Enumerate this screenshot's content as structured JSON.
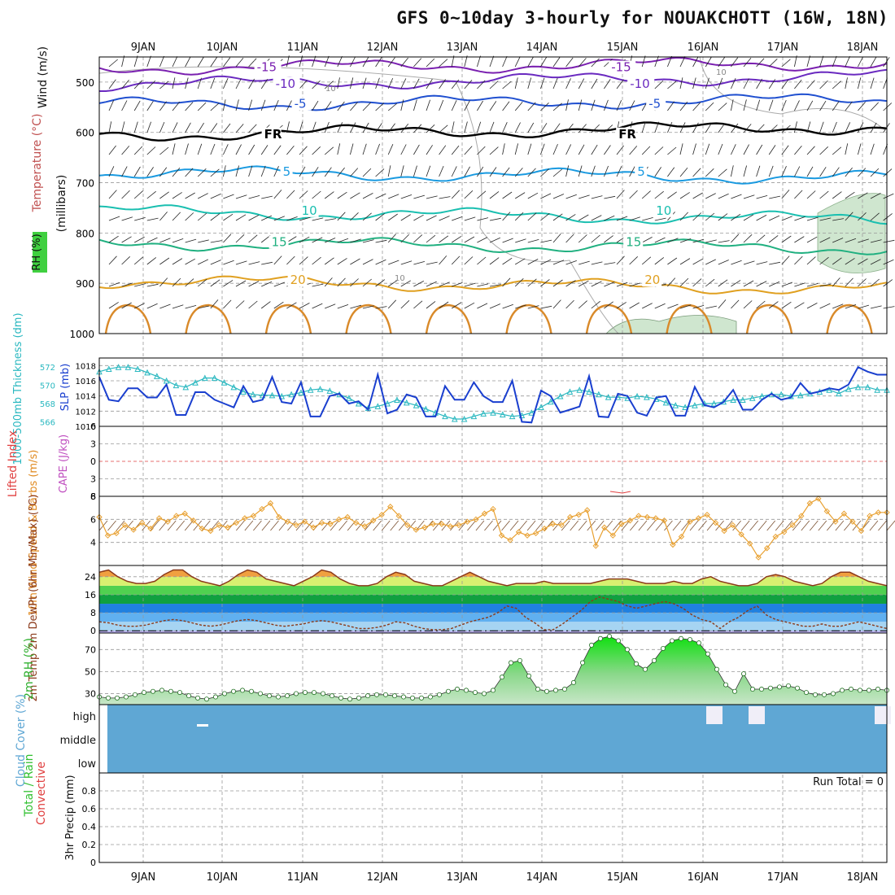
{
  "title": "GFS 0~10day 3-hourly for NOUAKCHOTT (16W, 18N)",
  "colors": {
    "grid": "#999999",
    "frame": "#000000",
    "slp": "#1a3fcf",
    "thickness": "#2ab8c0",
    "wind": "#e8a030",
    "temp": "#8b3a1a",
    "dew": "#8b3a1a",
    "rh": "#1fd21f",
    "cloud": "#5fa7d4",
    "li": "#e04040",
    "cape": "#c050c0"
  },
  "day_labels": [
    "9JAN",
    "10JAN",
    "11JAN",
    "12JAN",
    "13JAN",
    "14JAN",
    "15JAN",
    "16JAN",
    "17JAN",
    "18JAN"
  ],
  "chart_data": [
    {
      "type": "contour",
      "name": "upper-air",
      "ylabel": "(millibars)",
      "side_labels": [
        "Wind (m/s)",
        "Temperature (°C)",
        "RH (%)"
      ],
      "yticks": [
        500,
        600,
        700,
        800,
        900,
        1000
      ],
      "ylim": [
        450,
        1000
      ],
      "isotherms": [
        {
          "label": "-15",
          "level": 472,
          "color": "#7a20b0"
        },
        {
          "label": "-10",
          "level": 505,
          "color": "#6a2ac0"
        },
        {
          "label": "-5",
          "level": 545,
          "color": "#2050d0"
        },
        {
          "label": "FR",
          "level": 605,
          "color": "#000000"
        },
        {
          "label": "5",
          "level": 680,
          "color": "#1a9ae0"
        },
        {
          "label": "10",
          "level": 757,
          "color": "#1abfb0"
        },
        {
          "label": "15",
          "level": 820,
          "color": "#20b080"
        },
        {
          "label": "20",
          "level": 895,
          "color": "#e0a020"
        }
      ],
      "rh_contour_label": "10"
    },
    {
      "type": "line",
      "name": "slp-thickness",
      "ylabel_left": "1000-500mb Thickness (dm)",
      "ylabel_right": "SLP (mb)",
      "yticks_left": [
        566,
        568,
        570,
        572
      ],
      "yticks_right": [
        1010,
        1012,
        1014,
        1016,
        1018
      ],
      "ylim_right": [
        1010,
        1019
      ],
      "series": [
        {
          "name": "SLP (mb)",
          "values": [
            1016.5,
            1013.5,
            1013.3,
            1015,
            1015,
            1013.8,
            1013.8,
            1015.5,
            1011.5,
            1011.5,
            1014.5,
            1014.5,
            1013.5,
            1013,
            1012.5,
            1015.3,
            1013.2,
            1013.5,
            1016.5,
            1013.2,
            1013,
            1015.8,
            1011.3,
            1011.3,
            1014,
            1014.3,
            1013,
            1013.3,
            1012.2,
            1016.8,
            1011.7,
            1012.2,
            1014.2,
            1013.8,
            1011.3,
            1011.3,
            1015.3,
            1013.5,
            1013.5,
            1015.8,
            1014,
            1013.2,
            1013.2,
            1016,
            1010.6,
            1010.5,
            1014.7,
            1014,
            1011.8,
            1012.2,
            1012.6,
            1016.6,
            1011.3,
            1011.2,
            1014.3,
            1014,
            1011.8,
            1011.4,
            1013.8,
            1014,
            1011.4,
            1011.4,
            1015.2,
            1012.8,
            1012.5,
            1013.2,
            1014.8,
            1012.2,
            1012.2,
            1013.5,
            1014.3,
            1013.5,
            1013.8,
            1015.7,
            1014.3,
            1014.6,
            1015,
            1014.8,
            1015.5,
            1017.8,
            1017.2,
            1016.8,
            1016.8
          ]
        },
        {
          "name": "Thickness (dm)",
          "values": [
            571.5,
            571.8,
            572,
            572,
            571.8,
            571.4,
            571,
            570.5,
            570,
            569.8,
            570.3,
            570.8,
            570.8,
            570.3,
            569.8,
            569.3,
            569,
            568.9,
            568.9,
            568.8,
            569,
            569.2,
            569.5,
            569.6,
            569.4,
            569,
            568.6,
            568,
            567.5,
            567.7,
            568,
            568.4,
            568.1,
            567.8,
            567.4,
            567,
            566.6,
            566.3,
            566.3,
            566.6,
            566.9,
            567,
            566.8,
            566.6,
            566.7,
            567,
            567.6,
            568.2,
            568.8,
            569.3,
            569.5,
            569.3,
            569,
            568.7,
            568.7,
            568.6,
            568.8,
            568.7,
            568.5,
            568.1,
            567.8,
            567.6,
            567.8,
            568,
            568,
            568.2,
            568.4,
            568.4,
            568.6,
            568.8,
            569,
            569,
            568.8,
            568.9,
            569.1,
            569.3,
            569.5,
            569.1,
            569.6,
            569.8,
            569.8,
            569.5,
            569.5
          ]
        }
      ]
    },
    {
      "type": "line",
      "name": "li-cape",
      "ylabel_left": "Lifted Index",
      "ylabel_right": "CAPE (J/kg)",
      "yticks": [
        6,
        3,
        0,
        -3,
        -6
      ],
      "ylim": [
        -6,
        6
      ],
      "series": [
        {
          "name": "CAPE (J/kg)",
          "values": []
        }
      ]
    },
    {
      "type": "line",
      "name": "wind10m",
      "ylabel": "10m Wind Speed & Barbs (m/s)",
      "yticks": [
        4,
        6,
        8
      ],
      "ylim": [
        2,
        8
      ],
      "series": [
        {
          "name": "Speed (m/s)",
          "values": [
            6.2,
            4.6,
            4.8,
            5.5,
            5.1,
            5.7,
            5.2,
            6.1,
            5.8,
            6.3,
            6.5,
            5.9,
            5.2,
            5,
            5.5,
            5.3,
            5.7,
            6.1,
            6.3,
            6.9,
            7.4,
            6.2,
            5.8,
            5.5,
            5.8,
            5.3,
            5.7,
            5.6,
            6,
            6.2,
            5.7,
            5.4,
            5.9,
            6.4,
            7.1,
            6.3,
            5.5,
            5.1,
            5.3,
            5.6,
            5.6,
            5.4,
            5.5,
            5.8,
            6,
            6.5,
            6.9,
            4.6,
            4.2,
            4.9,
            4.6,
            4.8,
            5.2,
            5.6,
            5.5,
            6.2,
            6.4,
            6.8,
            3.7,
            5.3,
            4.6,
            5.6,
            5.9,
            6.3,
            6.2,
            6.1,
            5.9,
            3.8,
            4.5,
            5.8,
            6.1,
            6.4,
            5.7,
            5,
            5.5,
            4.7,
            3.9,
            2.7,
            3.5,
            4.5,
            4.9,
            5.5,
            6.3,
            7.4,
            7.8,
            6.7,
            5.8,
            6.5,
            5.8,
            5,
            6.3,
            6.6,
            6.6
          ]
        }
      ]
    },
    {
      "type": "area",
      "name": "temp2m",
      "ylabel": "2m Temp 2m DewPt (6hr Min/Max) (°C)",
      "yticks": [
        0,
        8,
        16,
        24
      ],
      "ylim": [
        -1,
        29
      ],
      "series": [
        {
          "name": "2m Temp",
          "values": [
            26,
            27,
            24,
            22,
            21,
            21,
            22,
            25,
            27,
            27,
            24,
            22,
            21,
            20,
            22,
            25,
            27,
            26,
            23,
            22,
            21,
            20,
            22,
            24,
            27,
            26,
            23,
            21,
            20,
            20,
            21,
            24,
            26,
            25,
            22,
            21,
            20,
            20,
            22,
            24,
            26,
            24,
            22,
            21,
            20,
            21,
            21,
            21,
            22,
            21,
            21,
            21,
            21,
            21,
            22,
            23,
            23,
            23,
            22,
            21,
            21,
            21,
            22,
            21,
            21,
            23,
            24,
            22,
            21,
            20,
            20,
            21,
            24,
            25,
            24,
            22,
            21,
            20,
            21,
            24,
            26,
            26,
            24,
            22,
            21,
            20
          ]
        },
        {
          "name": "2m DewPt",
          "values": [
            4,
            3.5,
            2.5,
            2,
            2,
            2.5,
            3.5,
            4.5,
            5,
            4.5,
            3.5,
            2.5,
            2,
            2.5,
            3.5,
            4.5,
            5,
            4.5,
            3.5,
            2.5,
            2,
            2.5,
            3,
            4,
            4.5,
            4,
            3,
            2,
            1,
            1,
            1.5,
            2.5,
            4,
            3.5,
            2,
            1,
            0.5,
            0.5,
            1,
            2.5,
            4,
            5,
            6,
            8,
            11,
            10,
            6,
            3.5,
            0.5,
            0.5,
            3,
            6,
            9,
            13,
            15,
            14,
            13,
            11,
            10,
            11,
            12,
            13,
            12,
            10,
            7,
            5,
            4,
            1,
            4,
            6,
            9,
            11,
            7,
            5,
            4,
            3,
            2,
            2,
            3,
            2,
            2,
            3,
            4,
            3,
            2,
            1
          ]
        }
      ]
    },
    {
      "type": "area",
      "name": "rh2m",
      "ylabel": "2m RH (%)",
      "yticks": [
        30,
        50,
        70
      ],
      "ylim": [
        20,
        85
      ],
      "series": [
        {
          "name": "2m RH (%)",
          "values": [
            27,
            26,
            26,
            27,
            29,
            31,
            32,
            33,
            32,
            31,
            28,
            26,
            25,
            27,
            30,
            32,
            33,
            32,
            30,
            28,
            27,
            28,
            30,
            31,
            31,
            30,
            28,
            26,
            25,
            26,
            28,
            29,
            29,
            28,
            27,
            26,
            26,
            27,
            29,
            32,
            34,
            33,
            31,
            30,
            33,
            45,
            58,
            60,
            46,
            34,
            32,
            33,
            34,
            40,
            58,
            74,
            80,
            82,
            78,
            70,
            57,
            52,
            60,
            71,
            78,
            80,
            79,
            76,
            66,
            52,
            38,
            32,
            48,
            34,
            34,
            35,
            36,
            37,
            35,
            31,
            29,
            29,
            30,
            33,
            34,
            33,
            33,
            34,
            33
          ]
        }
      ]
    },
    {
      "type": "heatmap",
      "name": "cloud-cover",
      "ylabel": "Cloud Cover (%)",
      "levels": [
        "high",
        "middle",
        "low"
      ]
    },
    {
      "type": "bar",
      "name": "precip",
      "ylabel": "3hr Precip (mm)",
      "side_labels": [
        "Total / Rain",
        "Convective"
      ],
      "annotation": "Run Total = 0",
      "yticks": [
        "0",
        "0.2",
        "0.4",
        "0.6",
        "0.8"
      ],
      "ylim": [
        0,
        1
      ],
      "values": []
    }
  ]
}
